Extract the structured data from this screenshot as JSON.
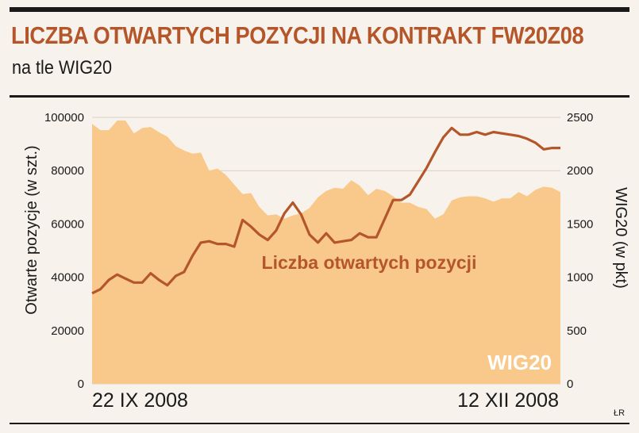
{
  "header": {
    "title": "LICZBA OTWARTYCH POZYCJI NA KONTRAKT FW20Z08",
    "subtitle": "na tle WIG20"
  },
  "credit": "ŁR",
  "colors": {
    "area": "#f8c98a",
    "line": "#b5562a",
    "text": "#1a1a1a"
  },
  "chart_data": {
    "type": "line",
    "ylabel": "Otwarte pozycje (w szt.)",
    "y2label": "WIG20 (w pkt)",
    "ylim": [
      0,
      100000
    ],
    "y2lim": [
      0,
      2500
    ],
    "yticks": [
      "0",
      "20000",
      "40000",
      "60000",
      "80000",
      "100000"
    ],
    "y2ticks": [
      "0",
      "500",
      "1000",
      "1500",
      "2000",
      "2500"
    ],
    "xticks": [
      "22 IX 2008",
      "12 XII 2008"
    ],
    "series": [
      {
        "name": "Liczba otwartych pozycji",
        "axis": "left",
        "values": [
          34000,
          35500,
          39000,
          41000,
          39500,
          38000,
          38000,
          41500,
          39000,
          37000,
          40500,
          42000,
          48000,
          53000,
          53500,
          52500,
          52500,
          51500,
          61500,
          59000,
          56000,
          54000,
          57500,
          64000,
          68000,
          63500,
          56000,
          53000,
          56500,
          53000,
          53500,
          54000,
          56500,
          55000,
          55000,
          62000,
          69000,
          69000,
          71000,
          76000,
          81000,
          87000,
          92500,
          96000,
          93500,
          93500,
          94500,
          93500,
          94500,
          94000,
          93500,
          93000,
          92000,
          90500,
          88000,
          88500,
          88500
        ]
      },
      {
        "name": "WIG20",
        "axis": "right",
        "values": [
          2440,
          2380,
          2380,
          2470,
          2470,
          2350,
          2400,
          2410,
          2360,
          2320,
          2230,
          2190,
          2160,
          2170,
          2000,
          2020,
          1960,
          1870,
          1780,
          1790,
          1660,
          1580,
          1590,
          1550,
          1580,
          1600,
          1650,
          1750,
          1810,
          1840,
          1830,
          1910,
          1860,
          1770,
          1830,
          1810,
          1760,
          1700,
          1700,
          1660,
          1640,
          1550,
          1590,
          1720,
          1750,
          1760,
          1760,
          1740,
          1710,
          1740,
          1740,
          1800,
          1760,
          1820,
          1850,
          1840,
          1800
        ]
      }
    ]
  }
}
